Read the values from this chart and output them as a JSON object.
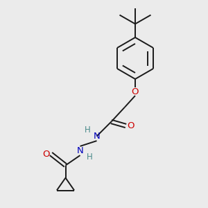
{
  "bg_color": "#EBEBEB",
  "bond_color": "#1A1A1A",
  "oxygen_color": "#CC0000",
  "nitrogen_color": "#0000BB",
  "hydrogen_color": "#4A8A8A",
  "line_width": 1.4,
  "font_size": 8.5,
  "xlim": [
    0,
    10
  ],
  "ylim": [
    0,
    10
  ]
}
